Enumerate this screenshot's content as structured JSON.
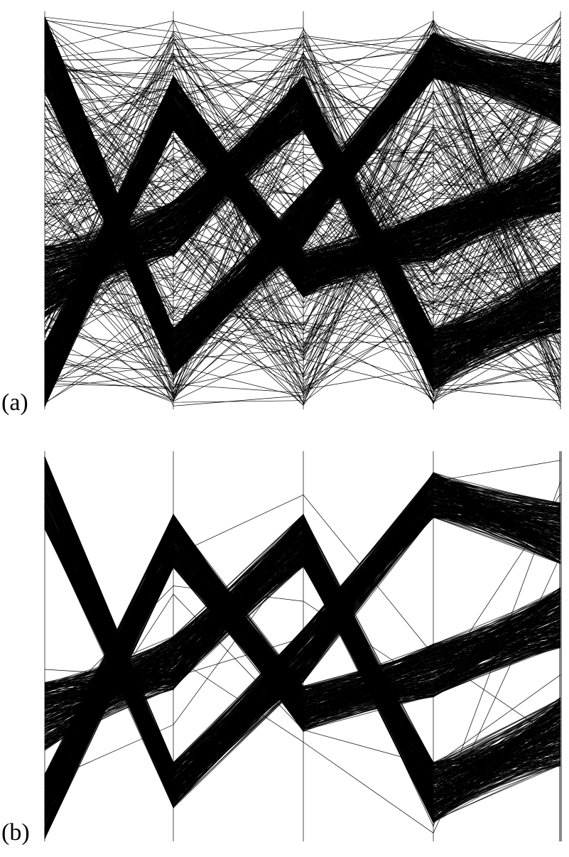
{
  "figure": {
    "panels": [
      {
        "label": "(a)"
      },
      {
        "label": "(b)"
      }
    ]
  },
  "colors": {
    "line": "#000000",
    "axis": "#888888",
    "background": "#ffffff"
  },
  "chart_data": [
    {
      "type": "parallel-coordinates",
      "panel": "(a)",
      "title": "",
      "axes": [
        "",
        "",
        "",
        "",
        ""
      ],
      "axis_range": [
        0,
        1
      ],
      "grid": false,
      "legend": "none",
      "bands": [
        {
          "points": [
            0.92,
            0.14,
            0.48,
            0.9,
            0.8
          ],
          "spread": [
            0.11,
            0.06,
            0.07,
            0.06,
            0.08
          ],
          "count": 320
        },
        {
          "points": [
            0.08,
            0.78,
            0.34,
            0.44,
            0.58
          ],
          "spread": [
            0.09,
            0.07,
            0.06,
            0.07,
            0.08
          ],
          "count": 320
        },
        {
          "points": [
            0.32,
            0.46,
            0.78,
            0.12,
            0.28
          ],
          "spread": [
            0.09,
            0.07,
            0.07,
            0.08,
            0.09
          ],
          "count": 320
        }
      ],
      "noise_lines": 220
    },
    {
      "type": "parallel-coordinates",
      "panel": "(b)",
      "title": "",
      "axes": [
        "",
        "",
        "",
        "",
        ""
      ],
      "axis_range": [
        0,
        1
      ],
      "grid": false,
      "legend": "none",
      "bands": [
        {
          "points": [
            0.92,
            0.14,
            0.48,
            0.9,
            0.8
          ],
          "spread": [
            0.11,
            0.06,
            0.07,
            0.06,
            0.08
          ],
          "count": 320
        },
        {
          "points": [
            0.08,
            0.78,
            0.34,
            0.44,
            0.58
          ],
          "spread": [
            0.09,
            0.07,
            0.06,
            0.07,
            0.08
          ],
          "count": 320
        },
        {
          "points": [
            0.32,
            0.46,
            0.78,
            0.12,
            0.28
          ],
          "spread": [
            0.09,
            0.07,
            0.07,
            0.08,
            0.09
          ],
          "count": 320
        }
      ],
      "noise_lines": 6
    }
  ]
}
